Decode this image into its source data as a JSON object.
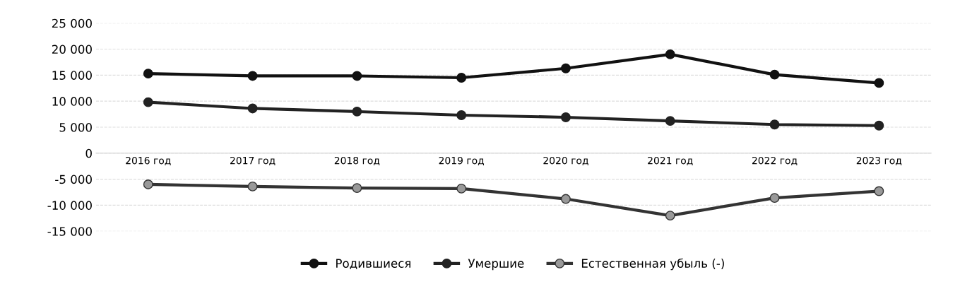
{
  "chart_data": {
    "type": "line",
    "categories": [
      "2016 год",
      "2017 год",
      "2018 год",
      "2019 год",
      "2020 год",
      "2021 год",
      "2022 год",
      "2023 год"
    ],
    "series": [
      {
        "name": "Родившиеся",
        "color": "#111111",
        "values": [
          15300,
          14850,
          14850,
          14500,
          16300,
          19000,
          15100,
          13500
        ]
      },
      {
        "name": "Умершие",
        "color": "#222222",
        "values": [
          9800,
          8600,
          8000,
          7300,
          6900,
          6200,
          5500,
          5300
        ]
      },
      {
        "name": "Естественная убыль (-)",
        "color": "#333333",
        "values": [
          -6000,
          -6400,
          -6700,
          -6800,
          -8800,
          -12000,
          -8600,
          -7300
        ]
      }
    ],
    "ylim": [
      -15000,
      25000
    ],
    "yticks": [
      {
        "value": -15000,
        "label": "-15 000"
      },
      {
        "value": -10000,
        "label": "-10 000"
      },
      {
        "value": -5000,
        "label": "-5 000"
      },
      0,
      {
        "value": 5000,
        "label": "5 000"
      },
      {
        "value": 10000,
        "label": "10 000"
      },
      {
        "value": 15000,
        "label": "15 000"
      },
      {
        "value": 20000,
        "label": "20 000"
      },
      {
        "value": 25000,
        "label": "25 000"
      }
    ],
    "grid": "y",
    "legend": "bottom",
    "marker": "circle",
    "line_style": "solid"
  }
}
